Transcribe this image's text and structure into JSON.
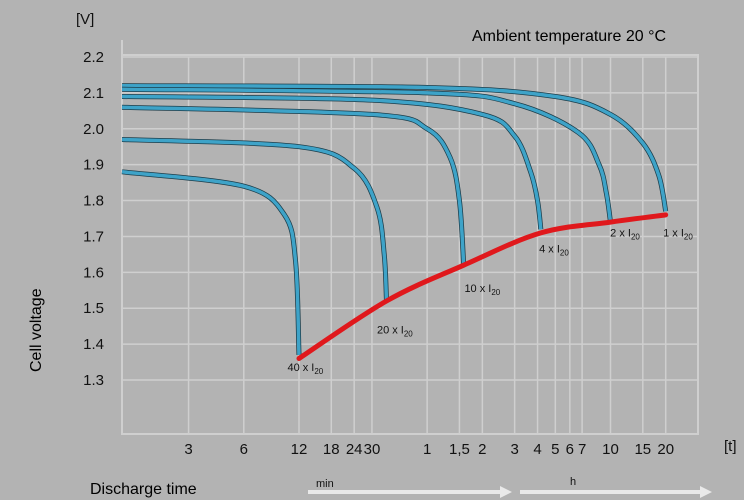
{
  "chart_data": {
    "type": "line",
    "title": "",
    "annotation": "Ambient temperature 20 °C",
    "xlabel": "Discharge time",
    "ylabel": "Cell voltage",
    "y_unit": "[V]",
    "x_unit": "[t]",
    "ylim": [
      1.3,
      2.2
    ],
    "y_ticks": [
      "2.2",
      "2.1",
      "2.0",
      "1.9",
      "1.8",
      "1.7",
      "1.6",
      "1.5",
      "1.4",
      "1.3"
    ],
    "x_scale": "log",
    "x_ticks": [
      {
        "label": "3",
        "minutes": 3
      },
      {
        "label": "6",
        "minutes": 6
      },
      {
        "label": "12",
        "minutes": 12
      },
      {
        "label": "18",
        "minutes": 18
      },
      {
        "label": "24",
        "minutes": 24
      },
      {
        "label": "30",
        "minutes": 30
      },
      {
        "label": "1",
        "minutes": 60
      },
      {
        "label": "1,5",
        "minutes": 90
      },
      {
        "label": "2",
        "minutes": 120
      },
      {
        "label": "3",
        "minutes": 180
      },
      {
        "label": "4",
        "minutes": 240
      },
      {
        "label": "5",
        "minutes": 300
      },
      {
        "label": "6",
        "minutes": 360
      },
      {
        "label": "7",
        "minutes": 420
      },
      {
        "label": "10",
        "minutes": 600
      },
      {
        "label": "15",
        "minutes": 900
      },
      {
        "label": "20",
        "minutes": 1200
      }
    ],
    "x_unit_min": "min",
    "x_unit_h": "h",
    "series": [
      {
        "name": "1 x I20",
        "points": [
          [
            1.3,
            2.12
          ],
          [
            60,
            2.115
          ],
          [
            300,
            2.09
          ],
          [
            600,
            2.04
          ],
          [
            900,
            1.96
          ],
          [
            1100,
            1.87
          ],
          [
            1200,
            1.77
          ]
        ]
      },
      {
        "name": "2 x I20",
        "points": [
          [
            1.3,
            2.11
          ],
          [
            60,
            2.1
          ],
          [
            180,
            2.07
          ],
          [
            400,
            1.99
          ],
          [
            520,
            1.9
          ],
          [
            570,
            1.82
          ],
          [
            600,
            1.74
          ]
        ]
      },
      {
        "name": "4 x I20",
        "points": [
          [
            1.3,
            2.09
          ],
          [
            30,
            2.08
          ],
          [
            120,
            2.04
          ],
          [
            180,
            1.98
          ],
          [
            220,
            1.88
          ],
          [
            240,
            1.8
          ],
          [
            250,
            1.72
          ]
        ]
      },
      {
        "name": "10 x I20",
        "points": [
          [
            1.3,
            2.06
          ],
          [
            30,
            2.04
          ],
          [
            60,
            2.0
          ],
          [
            80,
            1.92
          ],
          [
            90,
            1.8
          ],
          [
            95,
            1.62
          ]
        ]
      },
      {
        "name": "20 x I20",
        "points": [
          [
            1.3,
            1.97
          ],
          [
            12,
            1.95
          ],
          [
            24,
            1.89
          ],
          [
            32,
            1.78
          ],
          [
            35,
            1.65
          ],
          [
            36,
            1.52
          ]
        ]
      },
      {
        "name": "40 x I20",
        "points": [
          [
            1.3,
            1.88
          ],
          [
            6,
            1.84
          ],
          [
            10,
            1.76
          ],
          [
            11.5,
            1.63
          ],
          [
            12,
            1.37
          ]
        ]
      },
      {
        "name": "",
        "color": "#e0181c",
        "points": [
          [
            12,
            1.36
          ],
          [
            36,
            1.52
          ],
          [
            95,
            1.62
          ],
          [
            250,
            1.71
          ],
          [
            600,
            1.74
          ],
          [
            1200,
            1.76
          ]
        ]
      }
    ],
    "series_labels": [
      {
        "text": "1 x I20",
        "minutes": 1400,
        "voltage": 1.7
      },
      {
        "text": "2 x I20",
        "minutes": 720,
        "voltage": 1.7
      },
      {
        "text": "4 x I20",
        "minutes": 295,
        "voltage": 1.655
      },
      {
        "text": "10 x I20",
        "minutes": 120,
        "voltage": 1.545
      },
      {
        "text": "20 x I20",
        "minutes": 40,
        "voltage": 1.43
      },
      {
        "text": "40 x I20",
        "minutes": 13,
        "voltage": 1.325
      }
    ],
    "grid": true,
    "colors": {
      "background": "#b3b3b3",
      "grid": "#cfcfcf",
      "curve": "#3ea3c8",
      "curve_dark": "#1c3d4a",
      "cutoff": "#e0181c"
    }
  }
}
